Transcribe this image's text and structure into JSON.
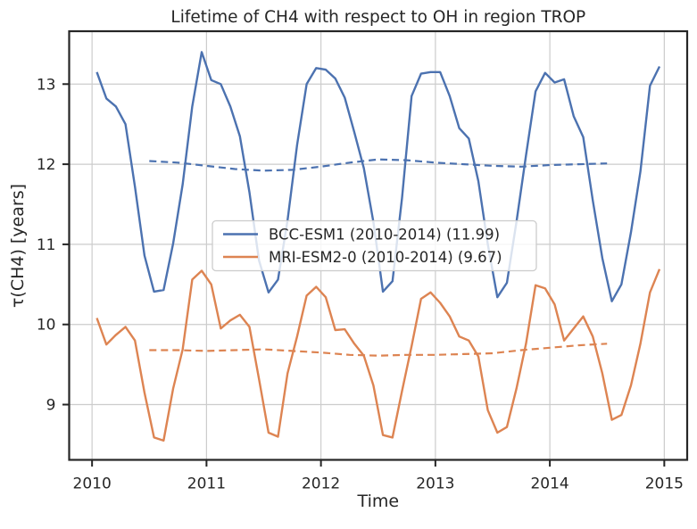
{
  "chart_data": {
    "type": "line",
    "title": "Lifetime of CH4 with respect to OH in region TROP",
    "xlabel": "Time",
    "ylabel": "τ(CH4) [years]",
    "xlim": [
      2009.8,
      2015.2
    ],
    "ylim": [
      8.31,
      13.66
    ],
    "xticks": [
      "2010",
      "2011",
      "2012",
      "2013",
      "2014",
      "2015"
    ],
    "xtick_values": [
      2010,
      2011,
      2012,
      2013,
      2014,
      2015
    ],
    "yticks": [
      "9",
      "10",
      "11",
      "12",
      "13"
    ],
    "ytick_values": [
      9,
      10,
      11,
      12,
      13
    ],
    "grid": true,
    "legend_position": "center-left",
    "legend_entries": [
      {
        "label": "BCC-ESM1 (2010-2014) (11.99)",
        "color": "#4C72B0"
      },
      {
        "label": "MRI-ESM2-0 (2010-2014) (9.67)",
        "color": "#DD8452"
      }
    ],
    "colors": {
      "bcc_blue": "#4C72B0",
      "mri_orange": "#DD8452",
      "grid": "#cccccc",
      "spine": "#262626",
      "text": "#262626"
    },
    "series": [
      {
        "name": "BCC-ESM1 monthly lifetime",
        "color": "#4C72B0",
        "style": "solid",
        "x_start": 2010.0417,
        "x_step": 0.083333,
        "values": [
          13.15,
          12.82,
          12.72,
          12.5,
          11.72,
          10.86,
          10.41,
          10.43,
          11.01,
          11.75,
          12.72,
          13.4,
          13.05,
          13.0,
          12.72,
          12.35,
          11.65,
          10.8,
          10.4,
          10.56,
          11.3,
          12.24,
          13.0,
          13.2,
          13.18,
          13.07,
          12.83,
          12.4,
          11.95,
          11.28,
          10.41,
          10.54,
          11.58,
          12.85,
          13.13,
          13.15,
          13.15,
          12.85,
          12.45,
          12.32,
          11.79,
          11.0,
          10.34,
          10.52,
          11.28,
          12.11,
          12.91,
          13.14,
          13.02,
          13.06,
          12.6,
          12.34,
          11.55,
          10.83,
          10.29,
          10.5,
          11.15,
          11.91,
          12.98,
          13.22
        ]
      },
      {
        "name": "MRI-ESM2-0 monthly lifetime",
        "color": "#DD8452",
        "style": "solid",
        "x_start": 2010.0417,
        "x_step": 0.083333,
        "values": [
          10.08,
          9.75,
          9.87,
          9.97,
          9.8,
          9.15,
          8.59,
          8.55,
          9.2,
          9.69,
          10.56,
          10.67,
          10.5,
          9.95,
          10.05,
          10.12,
          9.97,
          9.32,
          8.65,
          8.6,
          9.39,
          9.85,
          10.36,
          10.47,
          10.34,
          9.93,
          9.94,
          9.76,
          9.61,
          9.24,
          8.62,
          8.59,
          9.17,
          9.73,
          10.32,
          10.4,
          10.27,
          10.1,
          9.85,
          9.8,
          9.6,
          8.93,
          8.65,
          8.72,
          9.2,
          9.76,
          10.49,
          10.45,
          10.25,
          9.8,
          9.95,
          10.1,
          9.85,
          9.39,
          8.81,
          8.87,
          9.24,
          9.76,
          10.4,
          10.69
        ]
      },
      {
        "name": "BCC-ESM1 running annual mean (11.99)",
        "color": "#4C72B0",
        "style": "dashed",
        "x_start": 2010.5,
        "x_step": 0.25,
        "values": [
          12.04,
          12.02,
          11.98,
          11.94,
          11.92,
          11.93,
          11.97,
          12.02,
          12.06,
          12.05,
          12.02,
          12.0,
          11.98,
          11.97,
          11.99,
          12.0,
          12.01
        ]
      },
      {
        "name": "MRI-ESM2-0 running annual mean (9.67)",
        "color": "#DD8452",
        "style": "dashed",
        "x_start": 2010.5,
        "x_step": 0.25,
        "values": [
          9.68,
          9.68,
          9.67,
          9.68,
          9.69,
          9.67,
          9.65,
          9.62,
          9.61,
          9.62,
          9.62,
          9.63,
          9.64,
          9.68,
          9.71,
          9.74,
          9.76
        ]
      }
    ]
  }
}
